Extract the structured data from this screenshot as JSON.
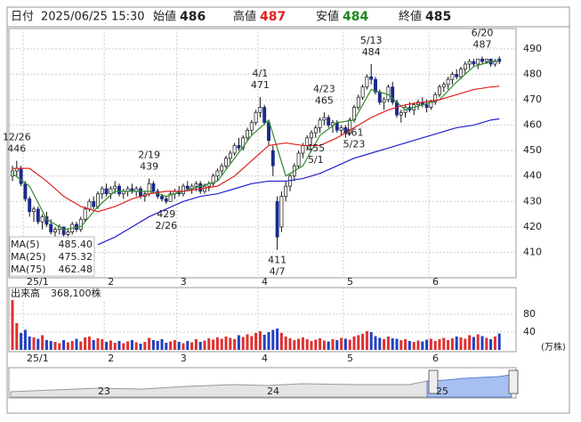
{
  "header": {
    "date_label": "日付",
    "datetime": "2025/06/25 15:30",
    "open_label": "始値",
    "open": 486,
    "high_label": "高値",
    "high": 487,
    "low_label": "安値",
    "low": 484,
    "close_label": "終値",
    "close": 485
  },
  "chart_data": {
    "type": "candlestick",
    "candles": [
      [
        440,
        444,
        438,
        442
      ],
      [
        442,
        446,
        440,
        443
      ],
      [
        443,
        444,
        436,
        437
      ],
      [
        437,
        438,
        430,
        431
      ],
      [
        431,
        432,
        424,
        426
      ],
      [
        426,
        428,
        422,
        427
      ],
      [
        427,
        428,
        421,
        422
      ],
      [
        422,
        425,
        419,
        424
      ],
      [
        424,
        426,
        420,
        421
      ],
      [
        421,
        423,
        417,
        418
      ],
      [
        418,
        420,
        416,
        419
      ],
      [
        419,
        421,
        417,
        420
      ],
      [
        420,
        420,
        416,
        417
      ],
      [
        417,
        419,
        415,
        418
      ],
      [
        418,
        422,
        417,
        421
      ],
      [
        421,
        422,
        418,
        419
      ],
      [
        419,
        424,
        418,
        423
      ],
      [
        423,
        428,
        422,
        427
      ],
      [
        427,
        431,
        426,
        430
      ],
      [
        430,
        432,
        427,
        428
      ],
      [
        428,
        434,
        427,
        433
      ],
      [
        433,
        436,
        431,
        435
      ],
      [
        435,
        437,
        432,
        433
      ],
      [
        433,
        436,
        431,
        435
      ],
      [
        435,
        438,
        433,
        436
      ],
      [
        436,
        437,
        432,
        433
      ],
      [
        433,
        435,
        431,
        434
      ],
      [
        434,
        436,
        432,
        435
      ],
      [
        435,
        437,
        433,
        434
      ],
      [
        434,
        436,
        432,
        435
      ],
      [
        435,
        436,
        431,
        432
      ],
      [
        432,
        434,
        430,
        433
      ],
      [
        433,
        439,
        432,
        437
      ],
      [
        437,
        438,
        433,
        434
      ],
      [
        434,
        435,
        431,
        432
      ],
      [
        432,
        433,
        430,
        431
      ],
      [
        431,
        432,
        429,
        430
      ],
      [
        430,
        434,
        430,
        433
      ],
      [
        433,
        435,
        431,
        434
      ],
      [
        434,
        436,
        432,
        433
      ],
      [
        433,
        437,
        432,
        436
      ],
      [
        436,
        438,
        434,
        435
      ],
      [
        435,
        437,
        433,
        436
      ],
      [
        436,
        438,
        434,
        437
      ],
      [
        437,
        438,
        433,
        434
      ],
      [
        434,
        437,
        433,
        436
      ],
      [
        436,
        438,
        434,
        437
      ],
      [
        437,
        441,
        436,
        440
      ],
      [
        440,
        443,
        438,
        442
      ],
      [
        442,
        445,
        440,
        444
      ],
      [
        444,
        448,
        443,
        447
      ],
      [
        447,
        450,
        445,
        449
      ],
      [
        449,
        453,
        448,
        452
      ],
      [
        452,
        455,
        450,
        451
      ],
      [
        451,
        456,
        450,
        455
      ],
      [
        455,
        459,
        454,
        458
      ],
      [
        458,
        462,
        456,
        461
      ],
      [
        461,
        466,
        460,
        465
      ],
      [
        465,
        471,
        463,
        467
      ],
      [
        467,
        468,
        460,
        461
      ],
      [
        461,
        462,
        452,
        454
      ],
      [
        450,
        452,
        440,
        444
      ],
      [
        430,
        432,
        411,
        416
      ],
      [
        420,
        434,
        418,
        432
      ],
      [
        432,
        438,
        430,
        436
      ],
      [
        436,
        441,
        434,
        440
      ],
      [
        440,
        445,
        438,
        444
      ],
      [
        444,
        450,
        443,
        449
      ],
      [
        449,
        453,
        447,
        452
      ],
      [
        452,
        456,
        450,
        455
      ],
      [
        455,
        458,
        452,
        457
      ],
      [
        457,
        460,
        455,
        459
      ],
      [
        459,
        463,
        457,
        462
      ],
      [
        462,
        465,
        460,
        463
      ],
      [
        463,
        464,
        459,
        460
      ],
      [
        460,
        462,
        457,
        461
      ],
      [
        461,
        462,
        457,
        458
      ],
      [
        458,
        460,
        456,
        459
      ],
      [
        459,
        460,
        455,
        457
      ],
      [
        457,
        463,
        456,
        462
      ],
      [
        462,
        468,
        461,
        467
      ],
      [
        467,
        472,
        466,
        471
      ],
      [
        471,
        476,
        470,
        475
      ],
      [
        475,
        480,
        474,
        479
      ],
      [
        479,
        484,
        476,
        478
      ],
      [
        478,
        479,
        472,
        473
      ],
      [
        473,
        474,
        468,
        469
      ],
      [
        469,
        471,
        466,
        470
      ],
      [
        470,
        476,
        469,
        475
      ],
      [
        475,
        477,
        468,
        469
      ],
      [
        469,
        470,
        463,
        464
      ],
      [
        464,
        466,
        461,
        465
      ],
      [
        465,
        468,
        463,
        467
      ],
      [
        467,
        469,
        465,
        466
      ],
      [
        466,
        469,
        464,
        468
      ],
      [
        468,
        470,
        466,
        469
      ],
      [
        469,
        471,
        467,
        468
      ],
      [
        468,
        470,
        465,
        467
      ],
      [
        467,
        470,
        466,
        469
      ],
      [
        469,
        473,
        468,
        472
      ],
      [
        472,
        476,
        471,
        475
      ],
      [
        475,
        477,
        473,
        476
      ],
      [
        476,
        479,
        474,
        478
      ],
      [
        478,
        481,
        476,
        480
      ],
      [
        480,
        482,
        478,
        479
      ],
      [
        479,
        483,
        478,
        482
      ],
      [
        482,
        485,
        480,
        484
      ],
      [
        484,
        486,
        482,
        485
      ],
      [
        485,
        486,
        483,
        484
      ],
      [
        484,
        486,
        482,
        486
      ],
      [
        486,
        487,
        484,
        485
      ],
      [
        485,
        486,
        484,
        486
      ],
      [
        486,
        486,
        483,
        484
      ],
      [
        484,
        486,
        483,
        485
      ],
      [
        486,
        487,
        484,
        485
      ]
    ],
    "ylim": [
      400,
      498
    ],
    "yticks": [
      410,
      420,
      430,
      440,
      450,
      460,
      470,
      480,
      490
    ],
    "grid": true,
    "xticks": [
      {
        "value": 3,
        "label": "25/1"
      },
      {
        "value": 22,
        "label": "2"
      },
      {
        "value": 39,
        "label": "3"
      },
      {
        "value": 58,
        "label": "4"
      },
      {
        "value": 78,
        "label": "5"
      },
      {
        "value": 98,
        "label": "6"
      }
    ],
    "up_color": "#ffffff",
    "down_color": "#1a2a8a",
    "ma_x": [
      0,
      4,
      8,
      12,
      16,
      20,
      24,
      28,
      32,
      36,
      40,
      44,
      48,
      52,
      56,
      60,
      64,
      68,
      72,
      76,
      80,
      84,
      88,
      92,
      96,
      100,
      104,
      108,
      112,
      114
    ],
    "series": [
      {
        "name": "MA(5)",
        "color": "#2e8b2e",
        "value_label": "485.40",
        "values": [
          441,
          436,
          423,
          419,
          420,
          428,
          434,
          434,
          434,
          432,
          434,
          436,
          438,
          447,
          456,
          462,
          440,
          444,
          456,
          461,
          462,
          474,
          472,
          466,
          468,
          470,
          477,
          483,
          485,
          485.4
        ]
      },
      {
        "name": "MA(25)",
        "color": "#e02020",
        "value_label": "475.32",
        "values": [
          443,
          443,
          438,
          432,
          428,
          426,
          428,
          431,
          433,
          434,
          434,
          435,
          436,
          440,
          446,
          452,
          453,
          452,
          452,
          455,
          459,
          463,
          466,
          468,
          469,
          470,
          472,
          474,
          475,
          475.32
        ]
      },
      {
        "name": "MA(75)",
        "color": "#2020d0",
        "value_label": "462.48",
        "values": [
          null,
          null,
          null,
          null,
          null,
          413,
          416,
          420,
          424,
          427,
          430,
          432,
          433,
          435,
          437,
          438,
          438,
          439,
          441,
          444,
          447,
          449,
          451,
          453,
          455,
          457,
          459,
          460,
          462,
          462.48
        ]
      }
    ],
    "annotations": [
      {
        "label": "12/26",
        "value": 446,
        "kind": "high"
      },
      {
        "label": "2/19",
        "value": 439,
        "kind": "high"
      },
      {
        "label": "4/1",
        "value": 471,
        "kind": "high"
      },
      {
        "label": "4/23",
        "value": 465,
        "kind": "high"
      },
      {
        "label": "5/13",
        "value": 484,
        "kind": "high"
      },
      {
        "label": "6/20",
        "value": 487,
        "kind": "high"
      },
      {
        "label": "2/26",
        "value": 429,
        "kind": "low"
      },
      {
        "label": "4/7",
        "value": 411,
        "kind": "low"
      },
      {
        "label": "5/1",
        "value": 455,
        "kind": "low"
      },
      {
        "label": "5/23",
        "value": 461,
        "kind": "low"
      }
    ],
    "volume": {
      "title": "出来高",
      "latest": {
        "value": 368100,
        "label": "368,100株"
      },
      "unit": "(万株)",
      "ylim": [
        0,
        136
      ],
      "yticks": [
        40,
        80
      ],
      "up_color": "#e03030",
      "down_color": "#2040c0",
      "values": [
        130,
        60,
        38,
        45,
        30,
        28,
        25,
        33,
        22,
        20,
        18,
        15,
        22,
        17,
        20,
        25,
        19,
        28,
        30,
        22,
        26,
        24,
        18,
        21,
        16,
        20,
        15,
        19,
        22,
        17,
        14,
        18,
        27,
        22,
        20,
        24,
        16,
        19,
        22,
        18,
        15,
        20,
        17,
        24,
        18,
        21,
        26,
        23,
        28,
        25,
        30,
        27,
        24,
        33,
        29,
        35,
        31,
        38,
        42,
        34,
        40,
        45,
        48,
        38,
        30,
        26,
        22,
        25,
        28,
        24,
        20,
        23,
        26,
        21,
        19,
        24,
        22,
        27,
        25,
        23,
        30,
        33,
        36,
        42,
        40,
        31,
        27,
        24,
        30,
        26,
        25,
        22,
        24,
        20,
        18,
        21,
        19,
        23,
        25,
        20,
        24,
        27,
        22,
        26,
        30,
        28,
        25,
        33,
        29,
        35,
        31,
        27,
        24,
        30,
        36.81
      ]
    },
    "navigator": {
      "labels": [
        "23",
        "24",
        "25"
      ]
    }
  }
}
